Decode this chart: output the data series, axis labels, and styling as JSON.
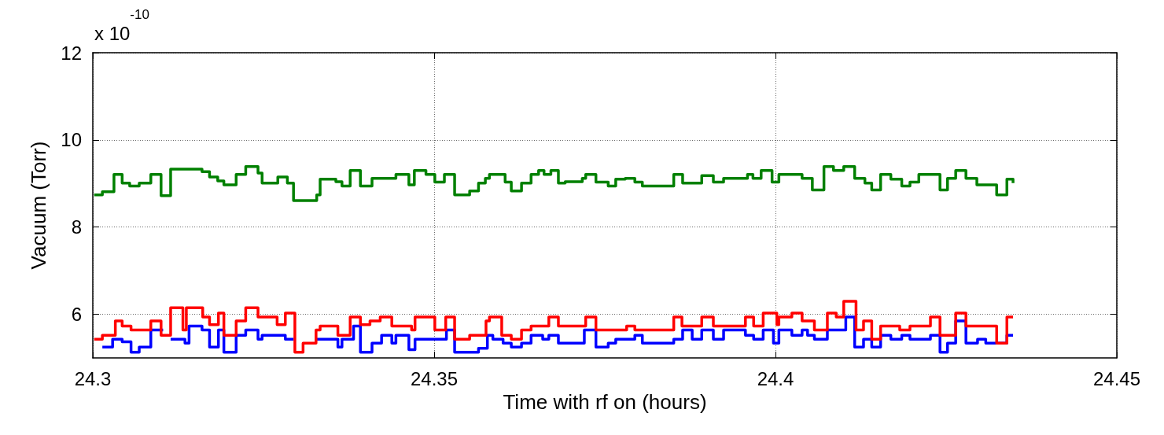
{
  "chart_data": {
    "type": "step",
    "xlabel": "Time with rf on (hours)",
    "ylabel": "Vacuum (Torr)",
    "annotations": [
      "x 10$^{-10}$"
    ],
    "xlim": [
      24.3,
      24.45
    ],
    "xticks": [
      24.3,
      24.35,
      24.4,
      24.45
    ],
    "ylim": [
      5,
      12
    ],
    "yticks": [
      6,
      8,
      10,
      12
    ],
    "grid": true,
    "marker": "none",
    "line_style": "solid",
    "series": [
      {
        "color": "#008000",
        "x": [
          24.3002,
          24.3014,
          24.3031,
          24.3043,
          24.3054,
          24.3068,
          24.3085,
          24.31,
          24.3114,
          24.316,
          24.3171,
          24.3183,
          24.3192,
          24.321,
          24.3224,
          24.3242,
          24.3248,
          24.3271,
          24.3285,
          24.3294,
          24.3328,
          24.3333,
          24.3356,
          24.3365,
          24.3377,
          24.3392,
          24.3409,
          24.3444,
          24.3463,
          24.3471,
          24.3488,
          24.3501,
          24.3515,
          24.353,
          24.3552,
          24.3565,
          24.3575,
          24.3581,
          24.3604,
          24.3613,
          24.3628,
          24.3642,
          24.3653,
          24.3661,
          24.3671,
          24.3682,
          24.3692,
          24.3717,
          24.3722,
          24.3737,
          24.3755,
          24.3766,
          24.378,
          24.3794,
          24.3805,
          24.3851,
          24.3864,
          24.3892,
          24.3909,
          24.3924,
          24.3959,
          24.3967,
          24.3979,
          24.3995,
          24.4005,
          24.4039,
          24.4054,
          24.4071,
          24.4085,
          24.41,
          24.4116,
          24.4131,
          24.4141,
          24.4154,
          24.4169,
          24.4185,
          24.4197,
          24.421,
          24.4241,
          24.4252,
          24.4264,
          24.4279,
          24.4295,
          24.4324,
          24.4339,
          24.4348
        ],
        "values": [
          8.74,
          8.81,
          9.21,
          9.01,
          8.94,
          9.01,
          9.21,
          8.72,
          9.33,
          9.27,
          9.15,
          9.06,
          8.97,
          9.21,
          9.39,
          9.24,
          9.01,
          9.15,
          9.01,
          8.61,
          8.74,
          9.1,
          9.04,
          8.94,
          9.3,
          8.94,
          9.12,
          9.21,
          8.97,
          9.3,
          9.21,
          9.03,
          9.21,
          8.74,
          8.83,
          9.01,
          9.12,
          9.21,
          9.03,
          8.83,
          9.01,
          9.21,
          9.3,
          9.21,
          9.3,
          9.01,
          9.04,
          9.12,
          9.21,
          9.03,
          8.94,
          9.1,
          9.12,
          9.03,
          8.94,
          9.21,
          9.01,
          9.18,
          9.03,
          9.12,
          9.21,
          9.12,
          9.3,
          9.03,
          9.21,
          9.12,
          8.85,
          9.39,
          9.3,
          9.39,
          9.12,
          9.01,
          8.85,
          9.21,
          9.1,
          8.94,
          9.03,
          9.21,
          8.85,
          9.12,
          9.3,
          9.12,
          8.97,
          8.74,
          9.1,
          9.01
        ]
      },
      {
        "color": "#0000ff",
        "x": [
          24.3014,
          24.3029,
          24.3043,
          24.3056,
          24.3068,
          24.3085,
          24.3103,
          24.3114,
          24.3135,
          24.3141,
          24.316,
          24.3171,
          24.3184,
          24.3192,
          24.321,
          24.3224,
          24.3242,
          24.3248,
          24.3282,
          24.3294,
          24.3328,
          24.3359,
          24.3365,
          24.3382,
          24.3392,
          24.3409,
          24.3423,
          24.3438,
          24.3444,
          24.3463,
          24.3472,
          24.3518,
          24.353,
          24.3565,
          24.3578,
          24.3586,
          24.3601,
          24.3613,
          24.3628,
          24.3642,
          24.3659,
          24.3668,
          24.3682,
          24.372,
          24.3737,
          24.3755,
          24.3766,
          24.3794,
          24.3805,
          24.3851,
          24.3864,
          24.3878,
          24.3892,
          24.3909,
          24.3924,
          24.3956,
          24.3968,
          24.3982,
          24.3997,
          24.4005,
          24.4024,
          24.4039,
          24.4047,
          24.4057,
          24.4076,
          24.4103,
          24.4116,
          24.4129,
          24.4141,
          24.4154,
          24.4169,
          24.4185,
          24.4197,
          24.4227,
          24.4241,
          24.4252,
          24.4264,
          24.4279,
          24.4296,
          24.4308,
          24.4339,
          24.4348
        ],
        "values": [
          5.25,
          5.43,
          5.37,
          5.13,
          5.25,
          5.64,
          null,
          5.43,
          5.34,
          5.73,
          5.64,
          5.25,
          5.64,
          5.13,
          5.52,
          5.64,
          5.43,
          5.52,
          5.43,
          null,
          5.43,
          5.25,
          5.43,
          5.73,
          5.13,
          5.34,
          5.52,
          5.34,
          5.52,
          5.19,
          5.43,
          5.64,
          5.13,
          5.22,
          5.52,
          5.43,
          5.34,
          5.25,
          5.34,
          5.52,
          5.43,
          5.52,
          5.34,
          5.64,
          5.25,
          5.34,
          5.43,
          5.52,
          5.34,
          5.43,
          5.64,
          5.43,
          5.64,
          5.43,
          5.64,
          5.52,
          5.43,
          5.64,
          5.34,
          5.64,
          5.52,
          5.64,
          5.52,
          5.43,
          5.64,
          5.94,
          5.25,
          5.43,
          5.25,
          5.52,
          5.43,
          5.52,
          5.43,
          5.52,
          5.13,
          5.34,
          5.85,
          5.34,
          5.43,
          5.34,
          5.52,
          5.52
        ]
      },
      {
        "color": "#ff0000",
        "x": [
          24.3002,
          24.3014,
          24.3033,
          24.3043,
          24.3056,
          24.3085,
          24.31,
          24.3114,
          24.3132,
          24.3137,
          24.3161,
          24.3171,
          24.3184,
          24.3192,
          24.321,
          24.3224,
          24.3242,
          24.327,
          24.3282,
          24.3296,
          24.3308,
          24.3327,
          24.3333,
          24.3359,
          24.3377,
          24.3392,
          24.3406,
          24.3421,
          24.3438,
          24.3467,
          24.3472,
          24.3501,
          24.3517,
          24.353,
          24.3552,
          24.3576,
          24.3581,
          24.3599,
          24.3613,
          24.3628,
          24.3642,
          24.3668,
          24.3682,
          24.3722,
          24.3737,
          24.3782,
          24.3794,
          24.3851,
          24.3863,
          24.3892,
          24.3909,
          24.3956,
          24.3968,
          24.3982,
          24.4002,
          24.4005,
          24.4024,
          24.4039,
          24.4057,
          24.4076,
          24.4089,
          24.41,
          24.4118,
          24.4129,
          24.4141,
          24.4154,
          24.4182,
          24.4197,
          24.4227,
          24.4241,
          24.4264,
          24.4279,
          24.4324,
          24.4339,
          24.4348
        ],
        "values": [
          5.43,
          5.52,
          5.85,
          5.73,
          5.64,
          5.85,
          5.52,
          6.15,
          5.64,
          6.15,
          5.94,
          5.76,
          6.03,
          5.52,
          5.85,
          6.15,
          5.94,
          5.76,
          6.03,
          5.13,
          5.34,
          5.64,
          5.73,
          5.52,
          5.94,
          5.76,
          5.85,
          5.94,
          5.73,
          5.64,
          5.94,
          5.64,
          5.94,
          5.43,
          5.52,
          5.85,
          5.94,
          5.52,
          5.43,
          5.64,
          5.73,
          5.94,
          5.73,
          5.94,
          5.64,
          5.73,
          5.64,
          5.94,
          5.73,
          5.94,
          5.73,
          5.94,
          5.73,
          6.03,
          5.76,
          5.94,
          6.03,
          5.85,
          5.64,
          6.03,
          5.94,
          6.3,
          5.64,
          5.85,
          5.43,
          5.73,
          5.64,
          5.73,
          5.94,
          5.52,
          6.03,
          5.73,
          5.34,
          5.94,
          5.94
        ]
      }
    ]
  }
}
